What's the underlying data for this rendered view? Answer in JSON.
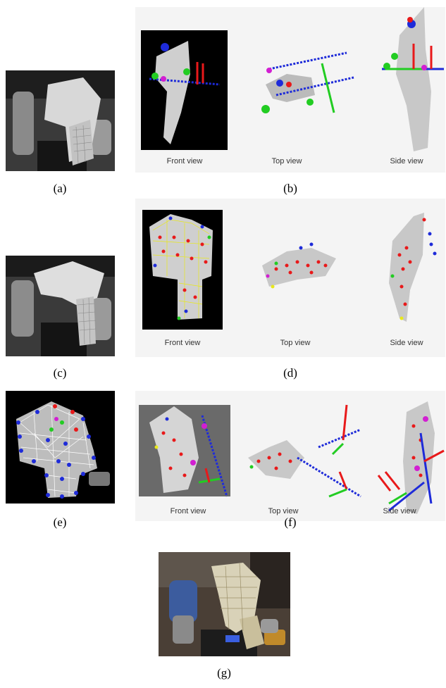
{
  "captions": {
    "a": "(a)",
    "b": "(b)",
    "c": "(c)",
    "d": "(d)",
    "e": "(e)",
    "f": "(f)",
    "g": "(g)"
  },
  "view_labels": {
    "front": "Front view",
    "top": "Top view",
    "side": "Side view"
  },
  "colors": {
    "red": "#e8191a",
    "green": "#22cc22",
    "blue": "#1e2bd9",
    "magenta": "#d21fd2",
    "yellow": "#e8e81a",
    "white": "#ffffff"
  }
}
